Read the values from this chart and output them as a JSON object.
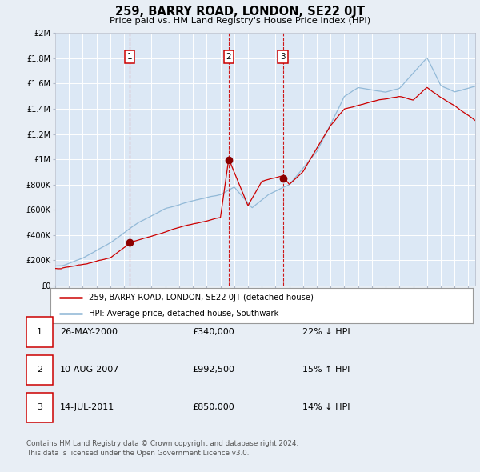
{
  "title": "259, BARRY ROAD, LONDON, SE22 0JT",
  "subtitle": "Price paid vs. HM Land Registry's House Price Index (HPI)",
  "background_color": "#e8eef5",
  "plot_bg_color": "#dce8f5",
  "grid_color": "#ffffff",
  "red_line_color": "#cc0000",
  "blue_line_color": "#8ab4d4",
  "marker_color": "#8b0000",
  "ylim": [
    0,
    2000000
  ],
  "yticks": [
    0,
    200000,
    400000,
    600000,
    800000,
    1000000,
    1200000,
    1400000,
    1600000,
    1800000,
    2000000
  ],
  "ytick_labels": [
    "£0",
    "£200K",
    "£400K",
    "£600K",
    "£800K",
    "£1M",
    "£1.2M",
    "£1.4M",
    "£1.6M",
    "£1.8M",
    "£2M"
  ],
  "legend_label_red": "259, BARRY ROAD, LONDON, SE22 0JT (detached house)",
  "legend_label_blue": "HPI: Average price, detached house, Southwark",
  "transaction1_date": "26-MAY-2000",
  "transaction1_price": 340000,
  "transaction1_x": 2000.4,
  "transaction2_date": "10-AUG-2007",
  "transaction2_price": 992500,
  "transaction2_x": 2007.6,
  "transaction3_date": "14-JUL-2011",
  "transaction3_price": 850000,
  "transaction3_x": 2011.53,
  "footnote_line1": "Contains HM Land Registry data © Crown copyright and database right 2024.",
  "footnote_line2": "This data is licensed under the Open Government Licence v3.0.",
  "xmin": 1995.0,
  "xmax": 2025.5
}
